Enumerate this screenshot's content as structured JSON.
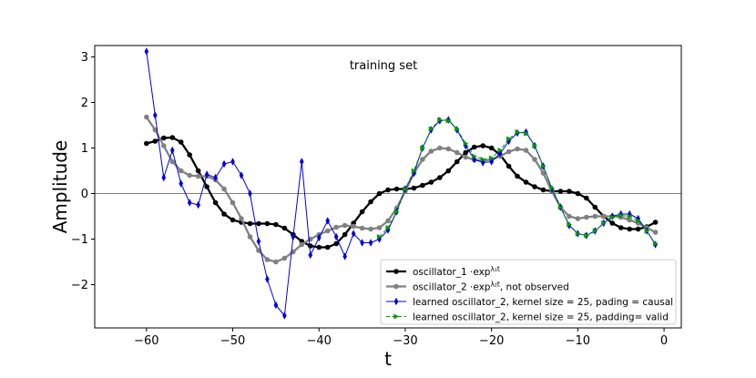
{
  "chart_data": {
    "type": "line",
    "annotation": "training set",
    "xlabel": "t",
    "ylabel": "Amplitude",
    "xlim": [
      -66,
      2
    ],
    "ylim": [
      -2.95,
      3.25
    ],
    "xticks": [
      -60,
      -50,
      -40,
      -30,
      -20,
      -10,
      0
    ],
    "xtick_labels": [
      "−60",
      "−50",
      "−40",
      "−30",
      "−20",
      "−10",
      "0"
    ],
    "yticks": [
      3,
      2,
      1,
      0,
      -1,
      -2
    ],
    "ytick_labels": [
      "3",
      "2",
      "1",
      "0",
      "−1",
      "−2"
    ],
    "zero_line": true,
    "grid": false,
    "legend_position": "lower-right",
    "series": [
      {
        "name": "oscillator_1 ·exp^{λ₁t}",
        "legend_text": "oscillator_1 ·exp",
        "legend_sup": "λ₁t",
        "legend_tail": "",
        "color": "#000000",
        "marker": "circle",
        "line_style": "solid",
        "x": [
          -60,
          -59,
          -58,
          -57,
          -56,
          -55,
          -54,
          -53,
          -52,
          -51,
          -50,
          -49,
          -48,
          -47,
          -46,
          -45,
          -44,
          -43,
          -42,
          -41,
          -40,
          -39,
          -38,
          -37,
          -36,
          -35,
          -34,
          -33,
          -32,
          -31,
          -30,
          -29,
          -28,
          -27,
          -26,
          -25,
          -24,
          -23,
          -22,
          -21,
          -20,
          -19,
          -18,
          -17,
          -16,
          -15,
          -14,
          -13,
          -12,
          -11,
          -10,
          -9,
          -8,
          -7,
          -6,
          -5,
          -4,
          -3,
          -2,
          -1
        ],
        "y": [
          1.1,
          1.15,
          1.22,
          1.23,
          1.13,
          0.85,
          0.5,
          0.15,
          -0.2,
          -0.45,
          -0.58,
          -0.63,
          -0.66,
          -0.66,
          -0.66,
          -0.68,
          -0.76,
          -0.9,
          -1.05,
          -1.15,
          -1.18,
          -1.18,
          -1.1,
          -0.9,
          -0.65,
          -0.4,
          -0.18,
          0.0,
          0.08,
          0.1,
          0.1,
          0.12,
          0.18,
          0.25,
          0.35,
          0.5,
          0.7,
          0.9,
          1.02,
          1.05,
          1.0,
          0.85,
          0.6,
          0.38,
          0.25,
          0.15,
          0.08,
          0.05,
          0.05,
          0.05,
          0.0,
          -0.1,
          -0.3,
          -0.5,
          -0.65,
          -0.75,
          -0.78,
          -0.78,
          -0.73,
          -0.63
        ]
      },
      {
        "name": "oscillator_2 ·exp^{λ₂t}, not observed",
        "legend_text": "oscillator_2 ·exp",
        "legend_sup": "λ₂t",
        "legend_tail": ", not observed",
        "color": "#808080",
        "marker": "circle",
        "line_style": "solid",
        "x": [
          -60,
          -59,
          -58,
          -57,
          -56,
          -55,
          -54,
          -53,
          -52,
          -51,
          -50,
          -49,
          -48,
          -47,
          -46,
          -45,
          -44,
          -43,
          -42,
          -41,
          -40,
          -39,
          -38,
          -37,
          -36,
          -35,
          -34,
          -33,
          -32,
          -31,
          -30,
          -29,
          -28,
          -27,
          -26,
          -25,
          -24,
          -23,
          -22,
          -21,
          -20,
          -19,
          -18,
          -17,
          -16,
          -15,
          -14,
          -13,
          -12,
          -11,
          -10,
          -9,
          -8,
          -7,
          -6,
          -5,
          -4,
          -3,
          -2,
          -1
        ],
        "y": [
          1.68,
          1.4,
          1.05,
          0.7,
          0.5,
          0.4,
          0.38,
          0.38,
          0.3,
          0.1,
          -0.2,
          -0.55,
          -0.95,
          -1.25,
          -1.45,
          -1.5,
          -1.42,
          -1.28,
          -1.12,
          -1.0,
          -0.9,
          -0.82,
          -0.74,
          -0.7,
          -0.72,
          -0.76,
          -0.78,
          -0.75,
          -0.6,
          -0.32,
          0.05,
          0.45,
          0.75,
          0.93,
          1.0,
          0.98,
          0.9,
          0.8,
          0.74,
          0.72,
          0.75,
          0.82,
          0.92,
          0.98,
          0.95,
          0.75,
          0.45,
          0.05,
          -0.3,
          -0.5,
          -0.55,
          -0.52,
          -0.5,
          -0.5,
          -0.5,
          -0.52,
          -0.58,
          -0.65,
          -0.75,
          -0.85
        ]
      },
      {
        "name": "learned oscillator_2, kernel size = 25, pading = causal",
        "legend_text": "learned oscillator_2, kernel size = 25, pading = causal",
        "legend_sup": "",
        "legend_tail": "",
        "color": "#0000dd",
        "marker": "diamond",
        "line_style": "solid",
        "x": [
          -60,
          -59,
          -58,
          -57,
          -56,
          -55,
          -54,
          -53,
          -52,
          -51,
          -50,
          -49,
          -48,
          -47,
          -46,
          -45,
          -44,
          -43,
          -42,
          -41,
          -40,
          -39,
          -38,
          -37,
          -36,
          -35,
          -34,
          -33,
          -32,
          -31,
          -30,
          -29,
          -28,
          -27,
          -26,
          -25,
          -24,
          -23,
          -22,
          -21,
          -20,
          -19,
          -18,
          -17,
          -16,
          -15,
          -14,
          -13,
          -12,
          -11,
          -10,
          -9,
          -8,
          -7,
          -6,
          -5,
          -4,
          -3,
          -2,
          -1
        ],
        "y": [
          3.12,
          1.72,
          0.35,
          0.95,
          0.22,
          -0.2,
          -0.25,
          0.42,
          0.35,
          0.65,
          0.7,
          0.4,
          0.0,
          -1.05,
          -1.88,
          -2.45,
          -2.68,
          -0.95,
          0.7,
          -1.35,
          -0.97,
          -0.6,
          -0.95,
          -1.38,
          -0.88,
          -1.08,
          -1.08,
          -1.0,
          -0.8,
          -0.4,
          0.1,
          0.45,
          1.0,
          1.4,
          1.6,
          1.62,
          1.4,
          1.05,
          0.75,
          0.68,
          0.7,
          0.88,
          1.15,
          1.33,
          1.35,
          1.05,
          0.6,
          0.1,
          -0.3,
          -0.7,
          -0.88,
          -0.92,
          -0.82,
          -0.65,
          -0.5,
          -0.45,
          -0.45,
          -0.55,
          -0.82,
          -1.12
        ]
      },
      {
        "name": "learned oscillator_2, kernel size = 25, padding= valid",
        "legend_text": "learned oscillator_2, kernel size = 25, padding= valid",
        "legend_sup": "",
        "legend_tail": "",
        "color": "#009900",
        "marker": "triangle-right",
        "line_style": "dashed",
        "x": [
          -33,
          -32,
          -31,
          -30,
          -29,
          -28,
          -27,
          -26,
          -25,
          -24,
          -23,
          -22,
          -21,
          -20,
          -19,
          -18,
          -17,
          -16,
          -15,
          -14,
          -13,
          -12,
          -11,
          -10,
          -9,
          -8,
          -7,
          -6,
          -5,
          -4,
          -3,
          -2,
          -1
        ],
        "y": [
          -0.95,
          -0.75,
          -0.4,
          0.1,
          0.5,
          1.0,
          1.42,
          1.62,
          1.6,
          1.42,
          1.1,
          0.82,
          0.75,
          0.78,
          0.95,
          1.2,
          1.35,
          1.32,
          1.05,
          0.6,
          0.12,
          -0.3,
          -0.68,
          -0.88,
          -0.92,
          -0.82,
          -0.65,
          -0.52,
          -0.48,
          -0.5,
          -0.6,
          -0.82,
          -1.1
        ]
      }
    ]
  }
}
